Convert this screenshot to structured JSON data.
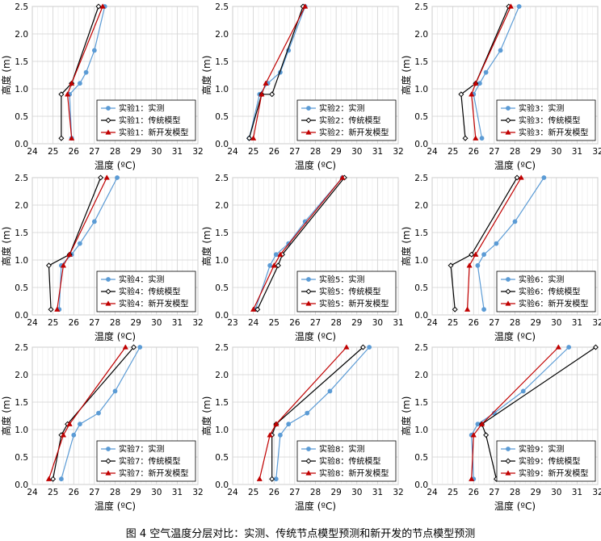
{
  "caption": "图 4 空气温度分层对比：实测、传统节点模型预测和新开发的节点模型预测",
  "series_styles": [
    {
      "kind": "measured",
      "color": "#5b9bd5",
      "marker": "circle"
    },
    {
      "kind": "traditional",
      "color": "#000000",
      "marker": "diamond-open"
    },
    {
      "kind": "new",
      "color": "#c00000",
      "marker": "triangle"
    }
  ],
  "chart_data": [
    {
      "type": "line",
      "xlabel": "温度 (ºC)",
      "ylabel": "高度 (m)",
      "xlim": [
        24,
        32
      ],
      "ylim": [
        0,
        2.5
      ],
      "xticks": [
        24,
        25,
        26,
        27,
        28,
        29,
        30,
        31,
        32
      ],
      "yticks": [
        0,
        0.5,
        1,
        1.5,
        2,
        2.5
      ],
      "legend_position": "bottom-right",
      "series": [
        {
          "name": "实验1：实测",
          "points": [
            [
              25.9,
              0.1
            ],
            [
              25.8,
              0.9
            ],
            [
              26.3,
              1.1
            ],
            [
              26.6,
              1.3
            ],
            [
              27.0,
              1.7
            ],
            [
              27.5,
              2.5
            ]
          ]
        },
        {
          "name": "实验1：传统模型",
          "points": [
            [
              25.4,
              0.1
            ],
            [
              25.4,
              0.9
            ],
            [
              25.9,
              1.1
            ],
            [
              27.2,
              2.5
            ]
          ]
        },
        {
          "name": "实验1：新开发模型",
          "points": [
            [
              25.9,
              0.1
            ],
            [
              25.7,
              0.9
            ],
            [
              25.9,
              1.1
            ],
            [
              27.4,
              2.5
            ]
          ]
        }
      ]
    },
    {
      "type": "line",
      "xlabel": "温度 (ºC)",
      "ylabel": "高度 (m)",
      "xlim": [
        24,
        32
      ],
      "ylim": [
        0,
        2.5
      ],
      "xticks": [
        24,
        25,
        26,
        27,
        28,
        29,
        30,
        31,
        32
      ],
      "yticks": [
        0,
        0.5,
        1,
        1.5,
        2,
        2.5
      ],
      "legend_position": "bottom-right",
      "series": [
        {
          "name": "实验2：实测",
          "points": [
            [
              24.8,
              0.1
            ],
            [
              25.3,
              0.9
            ],
            [
              25.7,
              1.1
            ],
            [
              26.3,
              1.3
            ],
            [
              26.7,
              1.7
            ],
            [
              27.5,
              2.5
            ]
          ]
        },
        {
          "name": "实验2：传统模型",
          "points": [
            [
              24.8,
              0.1
            ],
            [
              25.4,
              0.9
            ],
            [
              25.9,
              0.9
            ],
            [
              27.4,
              2.5
            ]
          ]
        },
        {
          "name": "实验2：新开发模型",
          "points": [
            [
              25.0,
              0.1
            ],
            [
              25.4,
              0.9
            ],
            [
              25.6,
              1.1
            ],
            [
              27.5,
              2.5
            ]
          ]
        }
      ]
    },
    {
      "type": "line",
      "xlabel": "温度 (ºC)",
      "ylabel": "高度 (m)",
      "xlim": [
        24,
        32
      ],
      "ylim": [
        0,
        2.5
      ],
      "xticks": [
        24,
        25,
        26,
        27,
        28,
        29,
        30,
        31,
        32
      ],
      "yticks": [
        0,
        0.5,
        1,
        1.5,
        2,
        2.5
      ],
      "legend_position": "bottom-right",
      "series": [
        {
          "name": "实验3：实测",
          "points": [
            [
              26.4,
              0.1
            ],
            [
              26.0,
              0.9
            ],
            [
              26.3,
              1.1
            ],
            [
              26.6,
              1.3
            ],
            [
              27.3,
              1.7
            ],
            [
              28.2,
              2.5
            ]
          ]
        },
        {
          "name": "实验3：传统模型",
          "points": [
            [
              25.6,
              0.1
            ],
            [
              25.4,
              0.9
            ],
            [
              26.1,
              1.1
            ],
            [
              27.7,
              2.5
            ]
          ]
        },
        {
          "name": "实验3：新开发模型",
          "points": [
            [
              26.1,
              0.1
            ],
            [
              25.9,
              0.9
            ],
            [
              26.1,
              1.1
            ],
            [
              27.8,
              2.5
            ]
          ]
        }
      ]
    },
    {
      "type": "line",
      "xlabel": "温度 (ºC)",
      "ylabel": "高度 (m)",
      "xlim": [
        24,
        32
      ],
      "ylim": [
        0,
        2.5
      ],
      "xticks": [
        24,
        25,
        26,
        27,
        28,
        29,
        30,
        31,
        32
      ],
      "yticks": [
        0,
        0.5,
        1,
        1.5,
        2,
        2.5
      ],
      "legend_position": "bottom-right",
      "series": [
        {
          "name": "实验4：实测",
          "points": [
            [
              25.3,
              0.1
            ],
            [
              25.4,
              0.9
            ],
            [
              25.9,
              1.1
            ],
            [
              26.3,
              1.3
            ],
            [
              27.0,
              1.7
            ],
            [
              28.1,
              2.5
            ]
          ]
        },
        {
          "name": "实验4：传统模型",
          "points": [
            [
              24.9,
              0.1
            ],
            [
              24.8,
              0.9
            ],
            [
              25.8,
              1.1
            ],
            [
              27.3,
              2.5
            ]
          ]
        },
        {
          "name": "实验4：新开发模型",
          "points": [
            [
              25.2,
              0.1
            ],
            [
              25.5,
              0.9
            ],
            [
              25.8,
              1.1
            ],
            [
              27.6,
              2.5
            ]
          ]
        }
      ]
    },
    {
      "type": "line",
      "xlabel": "温度 (ºC)",
      "ylabel": "高度 (m)",
      "xlim": [
        23,
        31
      ],
      "ylim": [
        0,
        2.5
      ],
      "xticks": [
        23,
        24,
        25,
        26,
        27,
        28,
        29,
        30,
        31
      ],
      "yticks": [
        0,
        0.5,
        1,
        1.5,
        2,
        2.5
      ],
      "legend_position": "bottom-right",
      "series": [
        {
          "name": "实验5：实测",
          "points": [
            [
              24.1,
              0.1
            ],
            [
              24.8,
              0.9
            ],
            [
              25.1,
              1.1
            ],
            [
              25.7,
              1.3
            ],
            [
              26.5,
              1.7
            ],
            [
              28.3,
              2.5
            ]
          ]
        },
        {
          "name": "实验5：传统模型",
          "points": [
            [
              24.2,
              0.1
            ],
            [
              25.2,
              0.9
            ],
            [
              25.4,
              1.1
            ],
            [
              28.4,
              2.5
            ]
          ]
        },
        {
          "name": "实验5：新开发模型",
          "points": [
            [
              24.0,
              0.1
            ],
            [
              25.0,
              0.9
            ],
            [
              25.3,
              1.1
            ],
            [
              28.3,
              2.5
            ]
          ]
        }
      ]
    },
    {
      "type": "line",
      "xlabel": "温度 (ºC)",
      "ylabel": "高度 (m)",
      "xlim": [
        24,
        32
      ],
      "ylim": [
        0,
        2.5
      ],
      "xticks": [
        24,
        25,
        26,
        27,
        28,
        29,
        30,
        31,
        32
      ],
      "yticks": [
        0,
        0.5,
        1,
        1.5,
        2,
        2.5
      ],
      "legend_position": "bottom-right",
      "series": [
        {
          "name": "实验6：实测",
          "points": [
            [
              26.5,
              0.1
            ],
            [
              26.2,
              0.9
            ],
            [
              26.5,
              1.1
            ],
            [
              27.1,
              1.3
            ],
            [
              28.0,
              1.7
            ],
            [
              29.4,
              2.5
            ]
          ]
        },
        {
          "name": "实验6：传统模型",
          "points": [
            [
              25.1,
              0.1
            ],
            [
              24.9,
              0.9
            ],
            [
              25.9,
              1.1
            ],
            [
              28.1,
              2.5
            ]
          ]
        },
        {
          "name": "实验6：新开发模型",
          "points": [
            [
              25.7,
              0.1
            ],
            [
              25.8,
              0.9
            ],
            [
              26.1,
              1.1
            ],
            [
              28.3,
              2.5
            ]
          ]
        }
      ]
    },
    {
      "type": "line",
      "xlabel": "温度 (ºC)",
      "ylabel": "高度 (m)",
      "xlim": [
        24,
        32
      ],
      "ylim": [
        0,
        2.5
      ],
      "xticks": [
        24,
        25,
        26,
        27,
        28,
        29,
        30,
        31,
        32
      ],
      "yticks": [
        0,
        0.5,
        1,
        1.5,
        2,
        2.5
      ],
      "legend_position": "bottom-right",
      "series": [
        {
          "name": "实验7：实测",
          "points": [
            [
              25.4,
              0.1
            ],
            [
              26.0,
              0.9
            ],
            [
              26.3,
              1.1
            ],
            [
              27.2,
              1.3
            ],
            [
              28.0,
              1.7
            ],
            [
              29.2,
              2.5
            ]
          ]
        },
        {
          "name": "实验7：传统模型",
          "points": [
            [
              25.0,
              0.1
            ],
            [
              25.4,
              0.9
            ],
            [
              25.7,
              1.1
            ],
            [
              28.9,
              2.5
            ]
          ]
        },
        {
          "name": "实验7：新开发模型",
          "points": [
            [
              24.8,
              0.1
            ],
            [
              25.5,
              0.9
            ],
            [
              25.8,
              1.1
            ],
            [
              28.5,
              2.5
            ]
          ]
        }
      ]
    },
    {
      "type": "line",
      "xlabel": "温度 (ºC)",
      "ylabel": "高度 (m)",
      "xlim": [
        24,
        32
      ],
      "ylim": [
        0,
        2.5
      ],
      "xticks": [
        24,
        25,
        26,
        27,
        28,
        29,
        30,
        31,
        32
      ],
      "yticks": [
        0,
        0.5,
        1,
        1.5,
        2,
        2.5
      ],
      "legend_position": "bottom-right",
      "series": [
        {
          "name": "实验8：实测",
          "points": [
            [
              26.1,
              0.1
            ],
            [
              26.3,
              0.9
            ],
            [
              26.7,
              1.1
            ],
            [
              27.6,
              1.3
            ],
            [
              28.7,
              1.7
            ],
            [
              30.6,
              2.5
            ]
          ]
        },
        {
          "name": "实验8：传统模型",
          "points": [
            [
              25.9,
              0.1
            ],
            [
              25.9,
              0.9
            ],
            [
              26.1,
              1.1
            ],
            [
              30.3,
              2.5
            ]
          ]
        },
        {
          "name": "实验8：新开发模型",
          "points": [
            [
              25.3,
              0.1
            ],
            [
              25.8,
              0.9
            ],
            [
              26.1,
              1.1
            ],
            [
              29.5,
              2.5
            ]
          ]
        }
      ]
    },
    {
      "type": "line",
      "xlabel": "温度 (ºC)",
      "ylabel": "高度 (m)",
      "xlim": [
        24,
        32
      ],
      "ylim": [
        0,
        2.5
      ],
      "xticks": [
        24,
        25,
        26,
        27,
        28,
        29,
        30,
        31,
        32
      ],
      "yticks": [
        0,
        0.5,
        1,
        1.5,
        2,
        2.5
      ],
      "legend_position": "bottom-right",
      "series": [
        {
          "name": "实验9：实测",
          "points": [
            [
              26.0,
              0.1
            ],
            [
              25.9,
              0.9
            ],
            [
              26.2,
              1.1
            ],
            [
              27.0,
              1.3
            ],
            [
              28.4,
              1.7
            ],
            [
              30.6,
              2.5
            ]
          ]
        },
        {
          "name": "实验9：传统模型",
          "points": [
            [
              27.1,
              0.1
            ],
            [
              26.6,
              0.9
            ],
            [
              26.4,
              1.1
            ],
            [
              31.9,
              2.5
            ]
          ]
        },
        {
          "name": "实验9：新开发模型",
          "points": [
            [
              25.9,
              0.1
            ],
            [
              26.0,
              0.9
            ],
            [
              26.4,
              1.1
            ],
            [
              30.1,
              2.5
            ]
          ]
        }
      ]
    }
  ]
}
